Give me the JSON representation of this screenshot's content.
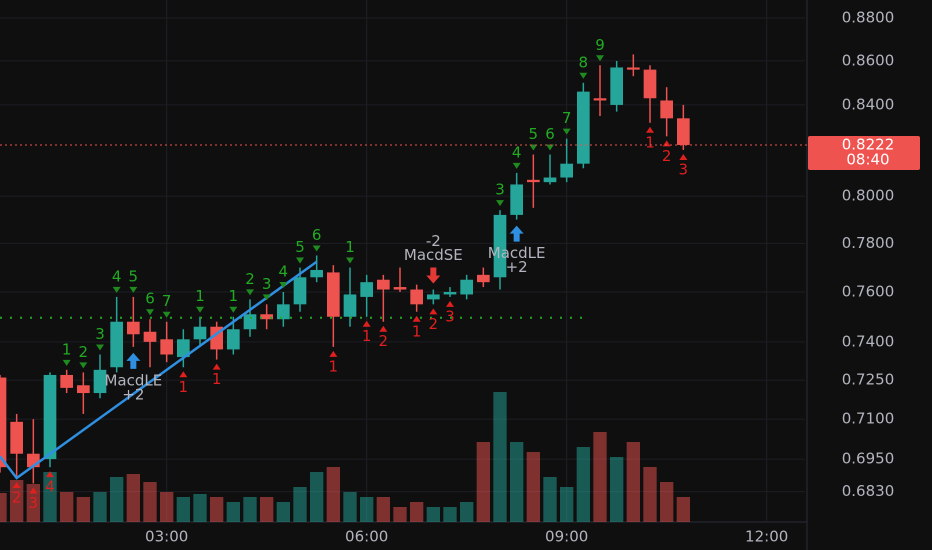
{
  "chart_data": {
    "type": "candlestick",
    "log_scale": true,
    "grid": true,
    "up_color": "#26a69a",
    "down_color": "#ef5350",
    "xlim": [
      0,
      48.3
    ],
    "xticks": [
      {
        "value": 10,
        "label": "03:00"
      },
      {
        "value": 22,
        "label": "06:00"
      },
      {
        "value": 34,
        "label": "09:00"
      },
      {
        "value": 46,
        "label": "12:00"
      }
    ],
    "ylim": [
      0.672,
      0.8885
    ],
    "yticks": [
      {
        "value": 0.88,
        "label": "0.8800"
      },
      {
        "value": 0.86,
        "label": "0.8600"
      },
      {
        "value": 0.84,
        "label": "0.8400"
      },
      {
        "value": 0.8,
        "label": "0.8000"
      },
      {
        "value": 0.78,
        "label": "0.7800"
      },
      {
        "value": 0.76,
        "label": "0.7600"
      },
      {
        "value": 0.74,
        "label": "0.7400"
      },
      {
        "value": 0.725,
        "label": "0.7250"
      },
      {
        "value": 0.71,
        "label": "0.7100"
      },
      {
        "value": 0.695,
        "label": "0.6950"
      },
      {
        "value": 0.683,
        "label": "0.6830"
      }
    ],
    "open": [
      0.726,
      0.709,
      0.697,
      0.695,
      0.727,
      0.723,
      0.72,
      0.73,
      0.748,
      0.744,
      0.741,
      0.734,
      0.741,
      0.746,
      0.737,
      0.745,
      0.751,
      0.749,
      0.755,
      0.766,
      0.768,
      0.75,
      0.758,
      0.765,
      0.762,
      0.761,
      0.757,
      0.759,
      0.759,
      0.767,
      0.766,
      0.792,
      0.807,
      0.806,
      0.808,
      0.814,
      0.843,
      0.84,
      0.857,
      0.856,
      0.842,
      0.834
    ],
    "high": [
      0.727,
      0.712,
      0.71,
      0.728,
      0.729,
      0.728,
      0.735,
      0.758,
      0.758,
      0.749,
      0.748,
      0.745,
      0.75,
      0.748,
      0.75,
      0.757,
      0.755,
      0.76,
      0.77,
      0.775,
      0.771,
      0.77,
      0.767,
      0.767,
      0.77,
      0.763,
      0.761,
      0.762,
      0.767,
      0.77,
      0.794,
      0.81,
      0.818,
      0.818,
      0.825,
      0.85,
      0.858,
      0.86,
      0.863,
      0.858,
      0.848,
      0.84
    ],
    "low": [
      0.69,
      0.688,
      0.686,
      0.692,
      0.72,
      0.712,
      0.718,
      0.728,
      0.738,
      0.73,
      0.732,
      0.73,
      0.738,
      0.733,
      0.735,
      0.742,
      0.745,
      0.746,
      0.752,
      0.764,
      0.738,
      0.746,
      0.75,
      0.748,
      0.76,
      0.752,
      0.755,
      0.758,
      0.757,
      0.762,
      0.761,
      0.79,
      0.795,
      0.805,
      0.806,
      0.812,
      0.835,
      0.837,
      0.853,
      0.832,
      0.826,
      0.82
    ],
    "close": [
      0.692,
      0.697,
      0.692,
      0.727,
      0.722,
      0.72,
      0.729,
      0.748,
      0.743,
      0.74,
      0.735,
      0.741,
      0.746,
      0.737,
      0.745,
      0.751,
      0.749,
      0.755,
      0.766,
      0.769,
      0.75,
      0.759,
      0.764,
      0.761,
      0.761,
      0.755,
      0.759,
      0.76,
      0.765,
      0.764,
      0.792,
      0.805,
      0.806,
      0.808,
      0.814,
      0.846,
      0.842,
      0.857,
      0.856,
      0.843,
      0.834,
      0.8222
    ],
    "volume": [
      29,
      42,
      38,
      50,
      30,
      25,
      30,
      45,
      48,
      40,
      30,
      25,
      28,
      25,
      20,
      25,
      25,
      20,
      35,
      50,
      55,
      30,
      25,
      25,
      15,
      20,
      15,
      15,
      20,
      80,
      130,
      80,
      70,
      45,
      35,
      75,
      90,
      65,
      80,
      55,
      40,
      25
    ],
    "countdown": "08:40",
    "zigzag": {
      "candles": [
        0,
        1,
        19
      ],
      "values": [
        0.696,
        0.688,
        0.7724
      ]
    },
    "level": {
      "value": 0.7496,
      "from": 0,
      "to": 35
    },
    "counts": [
      {
        "text": "1",
        "candle": 4,
        "side": "above"
      },
      {
        "text": "2",
        "candle": 5,
        "side": "above"
      },
      {
        "text": "3",
        "candle": 6,
        "side": "above"
      },
      {
        "text": "4",
        "candle": 7,
        "side": "above"
      },
      {
        "text": "5",
        "candle": 8,
        "side": "above"
      },
      {
        "text": "6",
        "candle": 9,
        "side": "above"
      },
      {
        "text": "7",
        "candle": 10,
        "side": "above"
      },
      {
        "text": "1",
        "candle": 12,
        "side": "above"
      },
      {
        "text": "1",
        "candle": 14,
        "side": "above"
      },
      {
        "text": "2",
        "candle": 15,
        "side": "above"
      },
      {
        "text": "3",
        "candle": 16,
        "side": "above"
      },
      {
        "text": "4",
        "candle": 17,
        "side": "above"
      },
      {
        "text": "5",
        "candle": 18,
        "side": "above"
      },
      {
        "text": "6",
        "candle": 19,
        "side": "above"
      },
      {
        "text": "1",
        "candle": 21,
        "side": "above"
      },
      {
        "text": "3",
        "candle": 30,
        "side": "above"
      },
      {
        "text": "4",
        "candle": 31,
        "side": "above"
      },
      {
        "text": "5",
        "candle": 32,
        "side": "above"
      },
      {
        "text": "6",
        "candle": 33,
        "side": "above"
      },
      {
        "text": "7",
        "candle": 34,
        "side": "above"
      },
      {
        "text": "8",
        "candle": 35,
        "side": "above"
      },
      {
        "text": "9",
        "candle": 36,
        "side": "above"
      },
      {
        "text": "2",
        "candle": 1,
        "side": "below"
      },
      {
        "text": "3",
        "candle": 2,
        "side": "below"
      },
      {
        "text": "4",
        "candle": 3,
        "side": "below"
      },
      {
        "text": "1",
        "candle": 11,
        "side": "below"
      },
      {
        "text": "1",
        "candle": 13,
        "side": "below"
      },
      {
        "text": "1",
        "candle": 20,
        "side": "below"
      },
      {
        "text": "1",
        "candle": 22,
        "side": "below"
      },
      {
        "text": "2",
        "candle": 23,
        "side": "below"
      },
      {
        "text": "1",
        "candle": 25,
        "side": "below"
      },
      {
        "text": "2",
        "candle": 26,
        "side": "below"
      },
      {
        "text": "3",
        "candle": 27,
        "side": "below"
      },
      {
        "text": "1",
        "candle": 39,
        "side": "below"
      },
      {
        "text": "2",
        "candle": 40,
        "side": "below"
      },
      {
        "text": "3",
        "candle": 41,
        "side": "below"
      }
    ],
    "signals": [
      {
        "name": "MacdLE",
        "qty": "+2",
        "candle": 8,
        "side": "below"
      },
      {
        "name": "MacdSE",
        "qty": "-2",
        "candle": 26,
        "side": "above"
      },
      {
        "name": "MacdLE",
        "qty": "+2",
        "candle": 31,
        "side": "below"
      }
    ]
  }
}
